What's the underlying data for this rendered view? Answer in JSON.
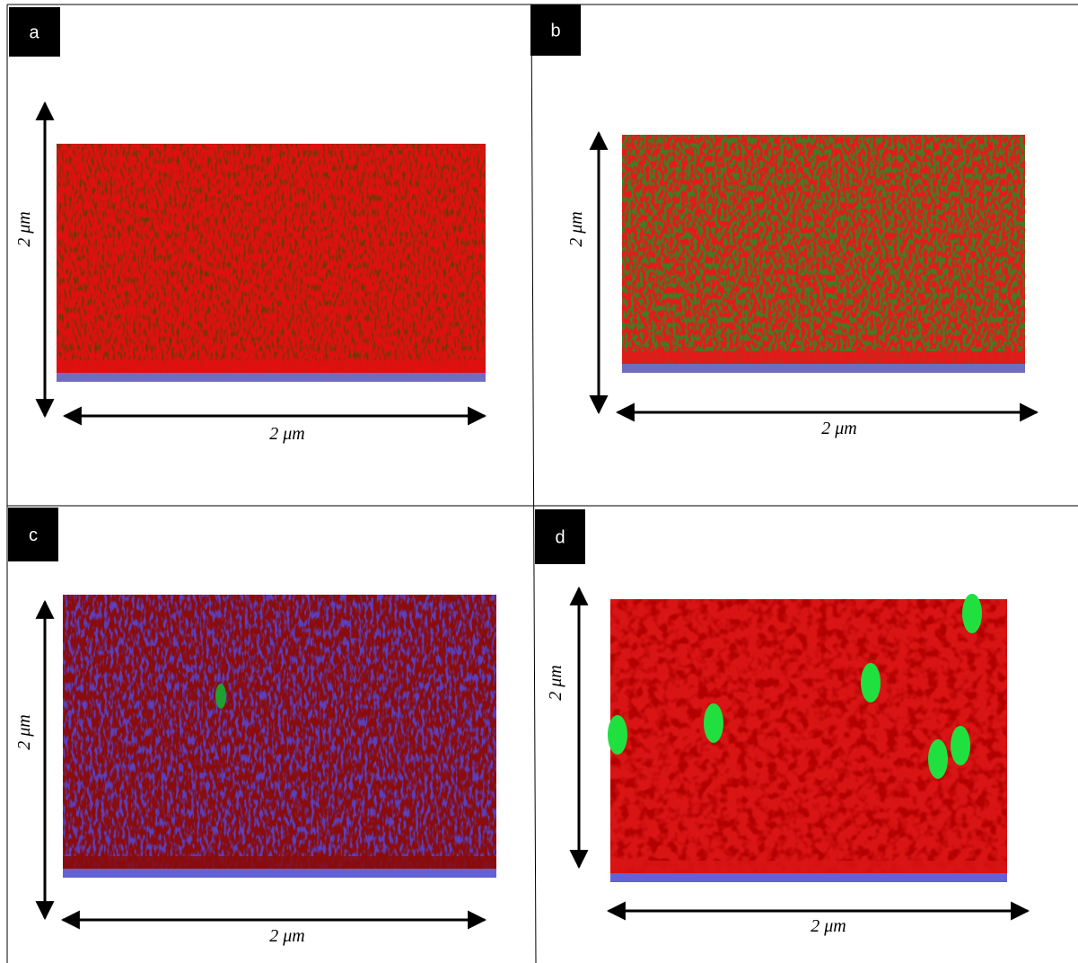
{
  "panels": [
    {
      "label": "a",
      "x_label": "2 μm",
      "y_label": "2 μm"
    },
    {
      "label": "b",
      "x_label": "2 μm",
      "y_label": "2 μm"
    },
    {
      "label": "c",
      "x_label": "2 μm",
      "y_label": "2 μm"
    },
    {
      "label": "d",
      "x_label": "2 μm",
      "y_label": "2 μm"
    }
  ]
}
